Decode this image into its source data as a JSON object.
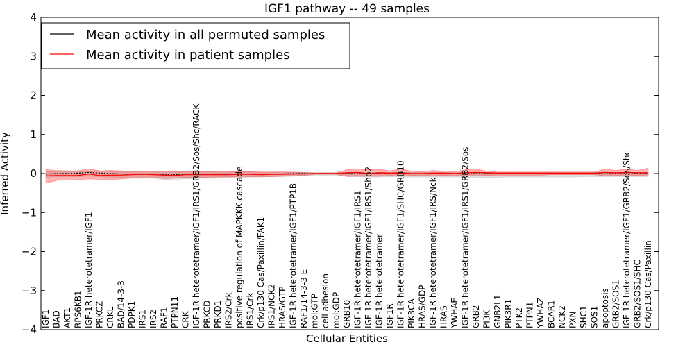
{
  "chart_data": {
    "type": "line",
    "title": "IGF1 pathway -- 49 samples",
    "xlabel": "Cellular Entities",
    "ylabel": "Inferred Activity",
    "ylim": [
      -4,
      4
    ],
    "yticks": [
      "4",
      "3",
      "2",
      "1",
      "0",
      "−1",
      "−2",
      "−3",
      "−4"
    ],
    "ytick_values": [
      4,
      3,
      2,
      1,
      0,
      -1,
      -2,
      -3,
      -4
    ],
    "legend": {
      "position": "top-left",
      "entries": [
        {
          "label": "Mean activity in all permuted samples",
          "color": "#000000"
        },
        {
          "label": "Mean activity in patient samples",
          "color": "#ff0000"
        }
      ]
    },
    "categories": [
      "IGF1",
      "BAD",
      "AKT1",
      "RPS6KB1",
      "IGF-1R heterotetramer/IGF1",
      "PRKCZ",
      "CRKL",
      "BAD/14-3-3",
      "PDPK1",
      "IRS1",
      "IRS2",
      "RAF1",
      "PTPN11",
      "CRK",
      "IGF-1R heterotetramer/IGF1/IRS1/GRB2/Sos/Shc/RACK",
      "PRKCD",
      "PRKD1",
      "IRS2/Crk",
      "positive regulation of MAPKKK cascade",
      "IRS1/Crk",
      "Crk/p130 Cas/Paxillin/FAK1",
      "IRS1/NCK2",
      "HRAS/GTP",
      "IGF-1R heterotetramer/IGF1/PTP1B",
      "RAF1/14-3-3 E",
      "mol:GTP",
      "cell adhesion",
      "mol:GDP",
      "GRB10",
      "IGF-1R heterotetramer/IGF1/IRS1",
      "IGF-1R heterotetramer/IGF1/IRS1/Shp2",
      "IGF-1R heterotetramer",
      "IGF1R",
      "IGF-1R heterotetramer/IGF1/SHC/GRB10",
      "PIK3CA",
      "HRAS/GDP",
      "IGF-1R heterotetramer/IGF1/IRS/Nck",
      "HRAS",
      "YWHAE",
      "IGF-1R heterotetramer/IGF1/IRS1/GRB2/Sos",
      "GRB2",
      "PI3K",
      "GNB2L1",
      "PIK3R1",
      "PTK2",
      "PTPN1",
      "YWHAZ",
      "BCAR1",
      "NCK2",
      "PXN",
      "SHC1",
      "SOS1",
      "apoptosis",
      "GRB2/SOS1",
      "IGF-1R heterotetramer/IGF1/GRB2/Sos/Shc",
      "GRB2/SOS1/SHC",
      "Crk/p130 Cas/Paxillin"
    ],
    "series": [
      {
        "name": "Mean activity in patient samples",
        "color": "#ff0000",
        "values": [
          -0.06,
          -0.05,
          -0.05,
          -0.05,
          -0.01,
          -0.05,
          -0.04,
          -0.04,
          -0.03,
          -0.02,
          -0.03,
          -0.04,
          -0.05,
          -0.03,
          -0.03,
          -0.03,
          -0.03,
          -0.03,
          -0.02,
          -0.02,
          -0.03,
          -0.02,
          -0.02,
          -0.01,
          -0.01,
          0.0,
          0.0,
          0.0,
          0.02,
          0.03,
          0.0,
          0.02,
          0.01,
          0.02,
          0.0,
          0.0,
          0.01,
          0.01,
          0.0,
          0.02,
          0.03,
          0.02,
          0.01,
          0.01,
          0.01,
          0.01,
          0.01,
          0.01,
          0.01,
          0.01,
          0.01,
          0.01,
          0.03,
          0.02,
          0.03,
          0.02,
          0.02
        ],
        "band_upper": [
          0.1,
          0.08,
          0.07,
          0.07,
          0.12,
          0.07,
          0.08,
          0.07,
          0.06,
          0.06,
          0.06,
          0.06,
          0.05,
          0.05,
          0.05,
          0.05,
          0.04,
          0.04,
          0.05,
          0.05,
          0.04,
          0.04,
          0.04,
          0.04,
          0.03,
          0.02,
          0.02,
          0.02,
          0.1,
          0.12,
          0.1,
          0.11,
          0.07,
          0.12,
          0.06,
          0.05,
          0.08,
          0.06,
          0.05,
          0.1,
          0.12,
          0.06,
          0.04,
          0.04,
          0.04,
          0.04,
          0.04,
          0.04,
          0.04,
          0.04,
          0.04,
          0.04,
          0.12,
          0.08,
          0.12,
          0.08,
          0.14
        ],
        "band_lower": [
          -0.25,
          -0.18,
          -0.17,
          -0.16,
          -0.14,
          -0.15,
          -0.16,
          -0.14,
          -0.12,
          -0.12,
          -0.11,
          -0.13,
          -0.12,
          -0.1,
          -0.1,
          -0.1,
          -0.09,
          -0.09,
          -0.08,
          -0.08,
          -0.08,
          -0.08,
          -0.07,
          -0.06,
          -0.05,
          -0.02,
          -0.02,
          -0.02,
          -0.08,
          -0.07,
          -0.07,
          -0.07,
          -0.05,
          -0.07,
          -0.05,
          -0.04,
          -0.06,
          -0.05,
          -0.04,
          -0.06,
          -0.06,
          -0.05,
          -0.04,
          -0.04,
          -0.04,
          -0.04,
          -0.04,
          -0.03,
          -0.03,
          -0.03,
          -0.03,
          -0.03,
          -0.06,
          -0.05,
          -0.06,
          -0.05,
          -0.06
        ]
      },
      {
        "name": "Mean activity in all permuted samples",
        "color": "#000000",
        "values": [
          -0.02,
          0.0,
          0.0,
          0.01,
          0.03,
          0.01,
          0.0,
          -0.01,
          -0.01,
          -0.02,
          -0.02,
          -0.03,
          -0.03,
          -0.02,
          -0.02,
          -0.02,
          -0.02,
          -0.02,
          -0.02,
          -0.01,
          -0.01,
          -0.01,
          -0.01,
          0.0,
          0.0,
          0.0,
          0.0,
          0.0,
          0.0,
          0.0,
          0.0,
          0.0,
          0.0,
          0.0,
          0.0,
          0.0,
          0.0,
          0.0,
          0.0,
          0.0,
          0.0,
          0.0,
          0.0,
          0.0,
          0.0,
          0.0,
          0.0,
          0.0,
          0.0,
          0.0,
          0.0,
          0.0,
          0.0,
          0.0,
          0.0,
          0.0,
          0.0
        ],
        "band_upper": [
          0.05,
          0.05,
          0.05,
          0.05,
          0.06,
          0.05,
          0.05,
          0.05,
          0.05,
          0.05,
          0.05,
          0.06,
          0.06,
          0.06,
          0.06,
          0.06,
          0.05,
          0.05,
          0.05,
          0.04,
          0.04,
          0.04,
          0.04,
          0.03,
          0.03,
          0.02,
          0.02,
          0.02,
          0.03,
          0.03,
          0.03,
          0.03,
          0.03,
          0.03,
          0.03,
          0.03,
          0.03,
          0.03,
          0.03,
          0.03,
          0.03,
          0.03,
          0.03,
          0.03,
          0.03,
          0.03,
          0.03,
          0.03,
          0.03,
          0.03,
          0.03,
          0.03,
          0.03,
          0.03,
          0.03,
          0.03,
          0.03
        ],
        "band_lower": [
          -0.1,
          -0.08,
          -0.08,
          -0.08,
          -0.07,
          -0.08,
          -0.1,
          -0.11,
          -0.12,
          -0.12,
          -0.12,
          -0.16,
          -0.15,
          -0.14,
          -0.13,
          -0.12,
          -0.12,
          -0.11,
          -0.1,
          -0.09,
          -0.09,
          -0.08,
          -0.08,
          -0.07,
          -0.06,
          -0.04,
          -0.04,
          -0.04,
          -0.07,
          -0.08,
          -0.09,
          -0.09,
          -0.08,
          -0.09,
          -0.09,
          -0.09,
          -0.09,
          -0.09,
          -0.09,
          -0.09,
          -0.1,
          -0.1,
          -0.1,
          -0.09,
          -0.09,
          -0.09,
          -0.09,
          -0.09,
          -0.09,
          -0.09,
          -0.08,
          -0.08,
          -0.08,
          -0.08,
          -0.08,
          -0.08,
          -0.08
        ]
      }
    ]
  }
}
